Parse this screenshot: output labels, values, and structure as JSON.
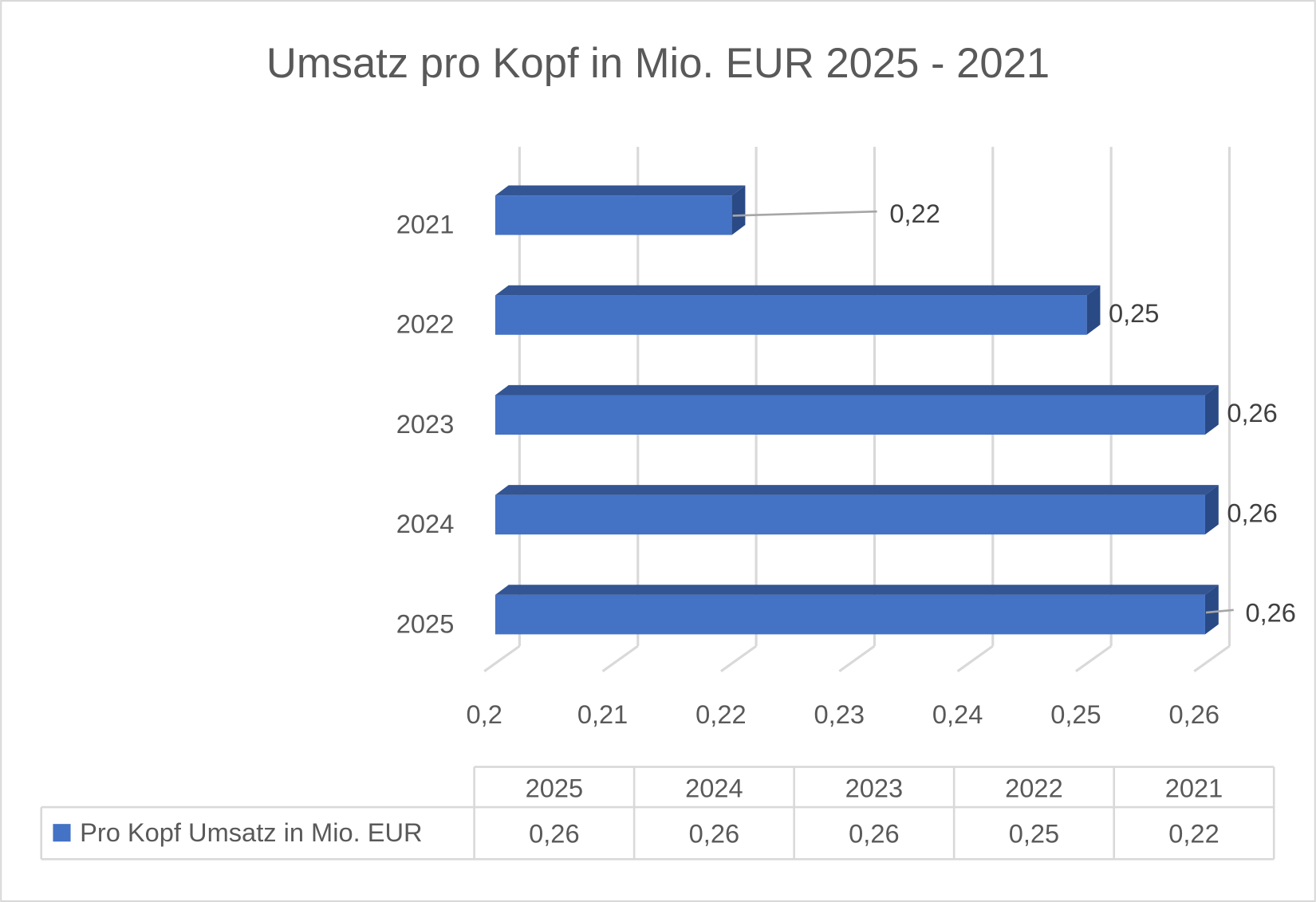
{
  "chart_data": {
    "type": "bar",
    "orientation": "horizontal",
    "style": "3d-clustered",
    "title": "Umsatz pro Kopf in Mio. EUR 2025 - 2021",
    "categories": [
      "2021",
      "2022",
      "2023",
      "2024",
      "2025"
    ],
    "series": [
      {
        "name": "Pro Kopf Umsatz in Mio. EUR",
        "values": [
          0.22,
          0.25,
          0.26,
          0.26,
          0.26
        ],
        "labels": [
          "0,22",
          "0,25",
          "0,26",
          "0,26",
          "0,26"
        ],
        "color": "#4472C4"
      }
    ],
    "xlim": [
      0.2,
      0.26
    ],
    "xticks": [
      "0,2",
      "0,21",
      "0,22",
      "0,23",
      "0,24",
      "0,25",
      "0,26"
    ],
    "grid": true,
    "legend": "data-table",
    "data_table": {
      "columns": [
        "2025",
        "2024",
        "2023",
        "2022",
        "2021"
      ],
      "row_label": "Pro Kopf Umsatz in Mio. EUR",
      "values": [
        "0,26",
        "0,26",
        "0,26",
        "0,25",
        "0,22"
      ]
    },
    "colors": {
      "front": "#4472C4",
      "top": "#335593",
      "side": "#2A4A85",
      "grid": "#D9D9D9",
      "text": "#595959"
    }
  }
}
